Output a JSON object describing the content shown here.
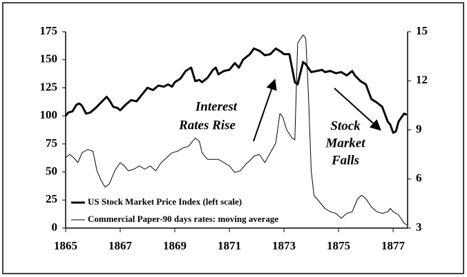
{
  "chart_data": {
    "type": "line",
    "annotations": [
      [
        "Interest",
        "Rates Rise"
      ],
      [
        "Stock",
        "Market",
        "Falls"
      ]
    ],
    "xlim": [
      1865,
      1877.53
    ],
    "xticks": [
      1865,
      1867,
      1869,
      1871,
      1873,
      1875,
      1877
    ],
    "ylim": [
      0,
      175
    ],
    "yticks": [
      0,
      25,
      50,
      75,
      100,
      125,
      150,
      175
    ],
    "y2lim": [
      3,
      15
    ],
    "y2ticks": [
      3,
      6,
      9,
      12,
      15
    ],
    "grid": false,
    "legend": "lower-left",
    "series": [
      {
        "name": "US Stock Market Price Index (left scale)",
        "color": "#000000",
        "axis": "y",
        "x": [
          1865.0,
          1865.1,
          1865.25,
          1865.4,
          1865.5,
          1865.6,
          1865.75,
          1865.9,
          1866.1,
          1866.3,
          1866.5,
          1866.6,
          1866.75,
          1866.9,
          1867.0,
          1867.2,
          1867.4,
          1867.6,
          1867.8,
          1868.0,
          1868.2,
          1868.4,
          1868.6,
          1868.75,
          1868.9,
          1869.0,
          1869.2,
          1869.4,
          1869.6,
          1869.75,
          1869.9,
          1870.0,
          1870.2,
          1870.4,
          1870.5,
          1870.6,
          1870.8,
          1871.0,
          1871.2,
          1871.35,
          1871.5,
          1871.75,
          1871.9,
          1872.1,
          1872.3,
          1872.5,
          1872.7,
          1872.9,
          1873.0,
          1873.2,
          1873.4,
          1873.5,
          1873.7,
          1873.8,
          1874.0,
          1874.2,
          1874.4,
          1874.5,
          1874.7,
          1874.9,
          1875.1,
          1875.3,
          1875.5,
          1875.6,
          1875.8,
          1876.0,
          1876.2,
          1876.4,
          1876.6,
          1876.8,
          1876.9,
          1877.0,
          1877.1,
          1877.2,
          1877.4,
          1877.5
        ],
        "values": [
          100,
          103,
          104,
          110,
          111,
          109,
          102,
          103,
          107,
          112,
          117,
          114,
          108,
          107,
          105,
          110,
          114,
          113,
          119,
          125,
          123,
          127,
          126,
          128,
          126,
          130,
          133,
          140,
          143,
          131,
          132,
          130,
          134,
          141,
          143,
          137,
          140,
          141,
          147,
          143,
          150,
          155,
          160,
          158,
          154,
          155,
          160,
          157,
          155,
          155,
          130,
          128,
          148,
          146,
          139,
          140,
          141,
          139,
          140,
          138,
          139,
          136,
          140,
          136,
          131,
          128,
          115,
          112,
          108,
          95,
          92,
          85,
          86,
          95,
          102,
          101
        ]
      },
      {
        "name": "Commercial Paper-90 days rates: moving average",
        "color": "#000000",
        "axis": "y2",
        "x": [
          1865.0,
          1865.15,
          1865.3,
          1865.45,
          1865.6,
          1865.8,
          1866.0,
          1866.15,
          1866.3,
          1866.45,
          1866.6,
          1866.8,
          1867.0,
          1867.15,
          1867.3,
          1867.5,
          1867.7,
          1867.9,
          1868.1,
          1868.3,
          1868.5,
          1868.7,
          1868.9,
          1869.1,
          1869.3,
          1869.5,
          1869.75,
          1869.9,
          1870.0,
          1870.2,
          1870.4,
          1870.6,
          1870.8,
          1871.0,
          1871.2,
          1871.4,
          1871.6,
          1871.8,
          1871.9,
          1872.1,
          1872.3,
          1872.5,
          1872.7,
          1872.85,
          1872.95,
          1873.1,
          1873.3,
          1873.4,
          1873.5,
          1873.7,
          1873.8,
          1873.9,
          1874.0,
          1874.1,
          1874.3,
          1874.5,
          1874.7,
          1874.9,
          1875.1,
          1875.3,
          1875.5,
          1875.7,
          1875.85,
          1876.0,
          1876.2,
          1876.4,
          1876.6,
          1876.8,
          1876.9,
          1877.0,
          1877.2,
          1877.4,
          1877.5
        ],
        "values": [
          7.3,
          7.5,
          7.3,
          7.0,
          7.6,
          7.8,
          7.7,
          6.5,
          5.9,
          5.5,
          5.7,
          6.5,
          7.0,
          6.8,
          6.5,
          6.6,
          6.8,
          6.6,
          6.8,
          6.5,
          7.0,
          7.3,
          7.6,
          7.7,
          7.9,
          8.0,
          8.5,
          8.3,
          7.6,
          7.2,
          7.2,
          7.2,
          7.0,
          6.8,
          6.4,
          6.5,
          6.9,
          7.2,
          7.4,
          7.5,
          7.0,
          7.6,
          8.2,
          10.0,
          9.8,
          9.0,
          8.5,
          8.4,
          14.3,
          14.8,
          14.6,
          11.0,
          6.5,
          5.0,
          4.6,
          4.2,
          4.0,
          3.9,
          3.6,
          3.9,
          4.0,
          4.8,
          5.0,
          4.8,
          4.3,
          4.0,
          3.9,
          4.0,
          4.2,
          4.0,
          3.8,
          3.3,
          3.2
        ]
      }
    ]
  }
}
